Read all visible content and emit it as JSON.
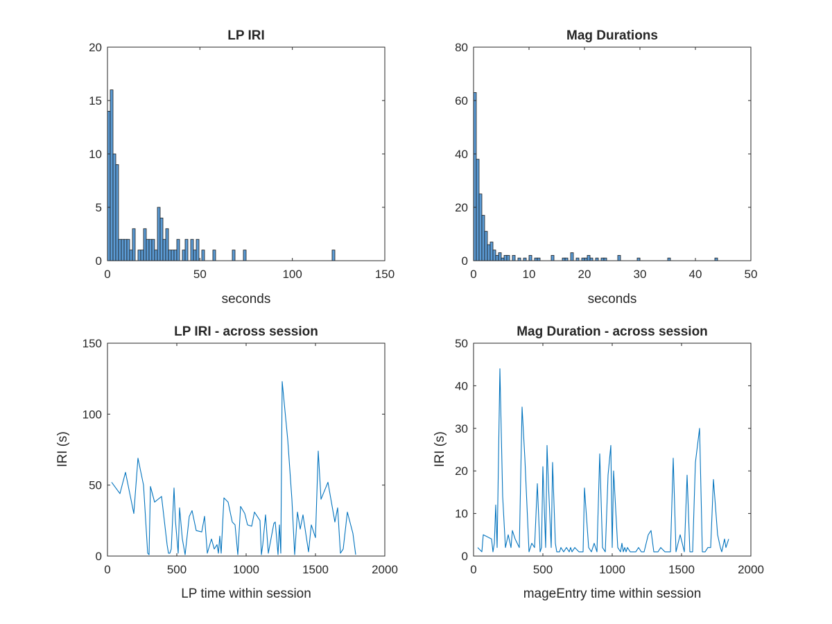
{
  "figure": {
    "background": "#ffffff",
    "axis_color": "#262626",
    "bar_color": "#5b9bd5",
    "line_color": "#0072bd"
  },
  "chart_data": [
    {
      "id": "lp-iri-hist",
      "type": "bar",
      "title": "LP IRI",
      "xlabel": "seconds",
      "ylabel": "",
      "xlim": [
        0,
        150
      ],
      "ylim": [
        0,
        20
      ],
      "xticks": [
        0,
        50,
        100,
        150
      ],
      "yticks": [
        0,
        5,
        10,
        15,
        20
      ],
      "bin_width": 1.5,
      "bars": [
        {
          "x": 0,
          "y": 14
        },
        {
          "x": 1.5,
          "y": 16
        },
        {
          "x": 3,
          "y": 10
        },
        {
          "x": 4.5,
          "y": 9
        },
        {
          "x": 6,
          "y": 2
        },
        {
          "x": 7.5,
          "y": 2
        },
        {
          "x": 9,
          "y": 2
        },
        {
          "x": 10.5,
          "y": 2
        },
        {
          "x": 12,
          "y": 1
        },
        {
          "x": 13.5,
          "y": 3
        },
        {
          "x": 16.5,
          "y": 1
        },
        {
          "x": 18,
          "y": 1
        },
        {
          "x": 19.5,
          "y": 3
        },
        {
          "x": 21,
          "y": 2
        },
        {
          "x": 22.5,
          "y": 2
        },
        {
          "x": 24,
          "y": 2
        },
        {
          "x": 25.5,
          "y": 1
        },
        {
          "x": 27,
          "y": 5
        },
        {
          "x": 28.5,
          "y": 4
        },
        {
          "x": 30,
          "y": 2
        },
        {
          "x": 31.5,
          "y": 3
        },
        {
          "x": 33,
          "y": 1
        },
        {
          "x": 34.5,
          "y": 1
        },
        {
          "x": 36,
          "y": 1
        },
        {
          "x": 37.5,
          "y": 2
        },
        {
          "x": 40.5,
          "y": 1
        },
        {
          "x": 42,
          "y": 2
        },
        {
          "x": 45,
          "y": 2
        },
        {
          "x": 46.5,
          "y": 1
        },
        {
          "x": 48,
          "y": 2
        },
        {
          "x": 51,
          "y": 1
        },
        {
          "x": 57,
          "y": 1
        },
        {
          "x": 67.5,
          "y": 1
        },
        {
          "x": 73.5,
          "y": 1
        },
        {
          "x": 121.5,
          "y": 1
        }
      ]
    },
    {
      "id": "mag-durations-hist",
      "type": "bar",
      "title": "Mag Durations",
      "xlabel": "seconds",
      "ylabel": "",
      "xlim": [
        0,
        50
      ],
      "ylim": [
        0,
        80
      ],
      "xticks": [
        0,
        10,
        20,
        30,
        40,
        50
      ],
      "yticks": [
        0,
        20,
        40,
        60,
        80
      ],
      "bin_width": 0.5,
      "bars": [
        {
          "x": 0,
          "y": 63
        },
        {
          "x": 0.5,
          "y": 38
        },
        {
          "x": 1,
          "y": 25
        },
        {
          "x": 1.5,
          "y": 17
        },
        {
          "x": 2,
          "y": 11
        },
        {
          "x": 2.5,
          "y": 6
        },
        {
          "x": 3,
          "y": 7
        },
        {
          "x": 3.5,
          "y": 4
        },
        {
          "x": 4,
          "y": 2
        },
        {
          "x": 4.5,
          "y": 3
        },
        {
          "x": 5,
          "y": 1
        },
        {
          "x": 5.5,
          "y": 2
        },
        {
          "x": 6,
          "y": 2
        },
        {
          "x": 7,
          "y": 2
        },
        {
          "x": 8,
          "y": 1
        },
        {
          "x": 9,
          "y": 1
        },
        {
          "x": 10,
          "y": 2
        },
        {
          "x": 11,
          "y": 1
        },
        {
          "x": 11.5,
          "y": 1
        },
        {
          "x": 14,
          "y": 2
        },
        {
          "x": 16,
          "y": 1
        },
        {
          "x": 16.5,
          "y": 1
        },
        {
          "x": 17.5,
          "y": 3
        },
        {
          "x": 18.5,
          "y": 1
        },
        {
          "x": 19.5,
          "y": 1
        },
        {
          "x": 20,
          "y": 1
        },
        {
          "x": 20.5,
          "y": 2
        },
        {
          "x": 21,
          "y": 1
        },
        {
          "x": 22,
          "y": 1
        },
        {
          "x": 23,
          "y": 1
        },
        {
          "x": 23.5,
          "y": 1
        },
        {
          "x": 26,
          "y": 2
        },
        {
          "x": 29.5,
          "y": 1
        },
        {
          "x": 35,
          "y": 1
        },
        {
          "x": 43.5,
          "y": 1
        }
      ]
    },
    {
      "id": "lp-iri-session",
      "type": "line",
      "title": "LP IRI - across session",
      "xlabel": "LP time within session",
      "ylabel": "IRI (s)",
      "xlim": [
        0,
        2000
      ],
      "ylim": [
        0,
        150
      ],
      "xticks": [
        0,
        500,
        1000,
        1500,
        2000
      ],
      "yticks": [
        0,
        50,
        100,
        150
      ],
      "x": [
        30,
        90,
        130,
        190,
        220,
        260,
        290,
        300,
        310,
        340,
        390,
        430,
        440,
        450,
        460,
        480,
        490,
        510,
        520,
        540,
        560,
        590,
        600,
        610,
        640,
        680,
        700,
        720,
        750,
        770,
        790,
        800,
        810,
        820,
        840,
        870,
        900,
        920,
        940,
        960,
        990,
        1010,
        1040,
        1060,
        1100,
        1110,
        1120,
        1140,
        1160,
        1200,
        1210,
        1230,
        1240,
        1250,
        1260,
        1300,
        1330,
        1350,
        1370,
        1390,
        1410,
        1450,
        1470,
        1500,
        1520,
        1540,
        1590,
        1640,
        1660,
        1680,
        1700,
        1730,
        1770,
        1790
      ],
      "y": [
        52,
        44,
        59,
        30,
        69,
        50,
        2,
        1,
        49,
        38,
        42,
        8,
        2,
        2,
        5,
        48,
        25,
        2,
        34,
        12,
        1,
        28,
        30,
        32,
        18,
        17,
        28,
        2,
        12,
        5,
        8,
        2,
        14,
        2,
        41,
        38,
        24,
        22,
        1,
        35,
        30,
        22,
        21,
        31,
        25,
        1,
        8,
        29,
        2,
        23,
        24,
        1,
        22,
        2,
        123,
        82,
        40,
        1,
        31,
        19,
        29,
        3,
        22,
        13,
        74,
        40,
        52,
        24,
        34,
        2,
        5,
        31,
        16,
        1
      ]
    },
    {
      "id": "mag-duration-session",
      "type": "line",
      "title": "Mag Duration - across session",
      "xlabel": "mageEntry time within session",
      "ylabel": "IRI (s)",
      "xlim": [
        0,
        2000
      ],
      "ylim": [
        0,
        50
      ],
      "xticks": [
        0,
        500,
        1000,
        1500,
        2000
      ],
      "yticks": [
        0,
        10,
        20,
        30,
        40,
        50
      ],
      "x": [
        30,
        60,
        70,
        130,
        140,
        150,
        160,
        170,
        190,
        210,
        230,
        250,
        270,
        280,
        300,
        330,
        350,
        370,
        400,
        420,
        440,
        460,
        480,
        490,
        500,
        520,
        530,
        540,
        560,
        570,
        590,
        600,
        620,
        630,
        650,
        670,
        690,
        700,
        710,
        730,
        760,
        790,
        800,
        830,
        850,
        870,
        890,
        910,
        930,
        950,
        970,
        990,
        1000,
        1010,
        1020,
        1040,
        1060,
        1070,
        1080,
        1090,
        1100,
        1110,
        1130,
        1150,
        1170,
        1190,
        1210,
        1230,
        1260,
        1280,
        1300,
        1330,
        1350,
        1380,
        1400,
        1420,
        1440,
        1460,
        1490,
        1520,
        1540,
        1560,
        1580,
        1600,
        1630,
        1650,
        1670,
        1690,
        1710,
        1730,
        1760,
        1780,
        1790,
        1810,
        1820,
        1840
      ],
      "y": [
        2,
        1,
        5,
        4,
        1,
        3,
        12,
        2,
        44,
        14,
        2,
        5,
        2,
        6,
        4,
        2,
        35,
        23,
        1,
        3,
        2,
        17,
        1,
        2,
        21,
        2,
        26,
        17,
        2,
        22,
        3,
        1,
        1,
        2,
        1,
        2,
        1,
        2,
        1,
        2,
        1,
        1,
        16,
        2,
        1,
        3,
        1,
        24,
        2,
        1,
        19,
        26,
        2,
        20,
        14,
        2,
        1,
        3,
        1,
        2,
        1,
        2,
        1,
        1,
        1,
        2,
        1,
        1,
        5,
        6,
        1,
        1,
        2,
        1,
        1,
        1,
        23,
        1,
        5,
        1,
        19,
        1,
        1,
        22,
        30,
        1,
        1,
        2,
        2,
        18,
        5,
        2,
        1,
        4,
        2,
        4
      ]
    }
  ]
}
